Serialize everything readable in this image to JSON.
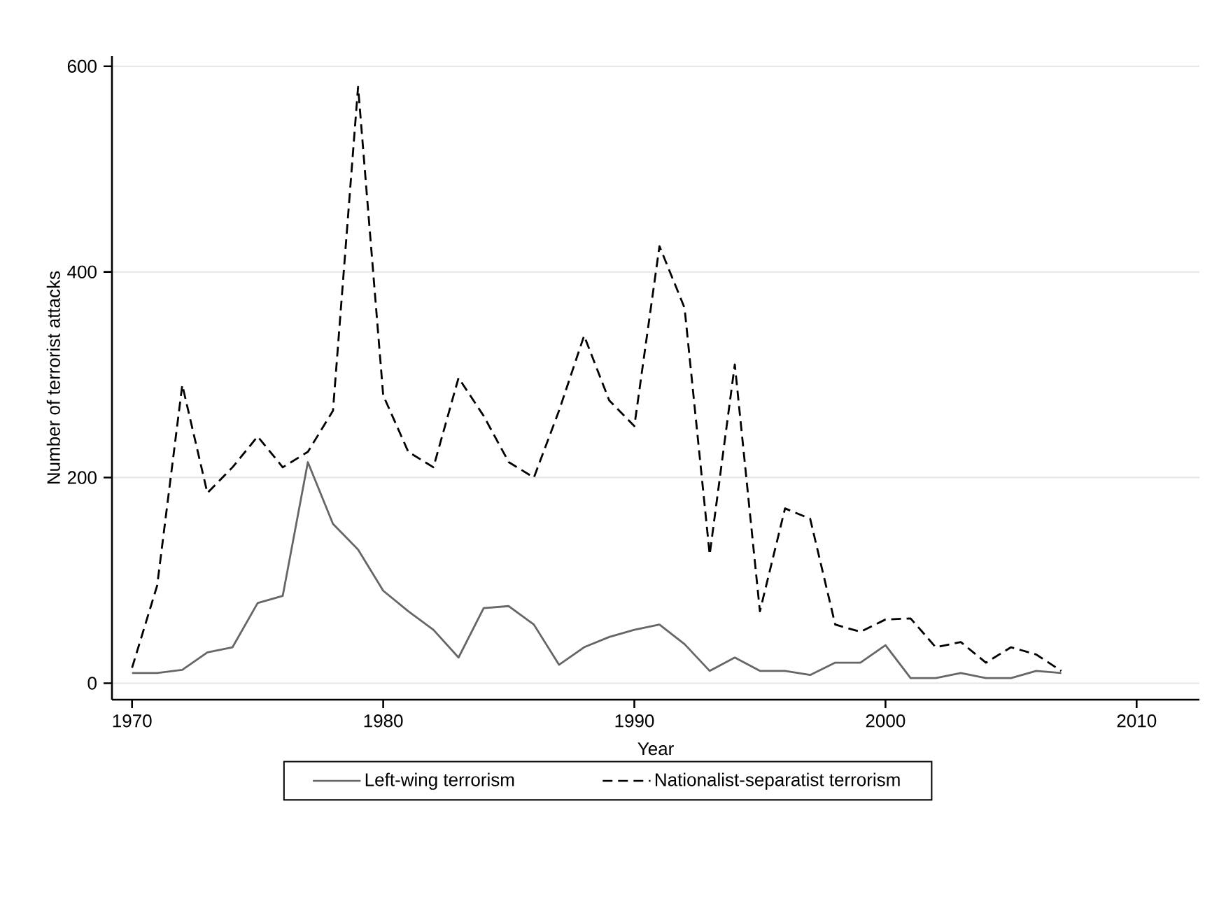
{
  "chart_data": {
    "type": "line",
    "xlabel": "Year",
    "ylabel": "Number of terrorist attacks",
    "x": [
      1970,
      1971,
      1972,
      1973,
      1974,
      1975,
      1976,
      1977,
      1978,
      1979,
      1980,
      1981,
      1982,
      1983,
      1984,
      1985,
      1986,
      1987,
      1988,
      1989,
      1990,
      1991,
      1992,
      1993,
      1994,
      1995,
      1996,
      1997,
      1998,
      1999,
      2000,
      2001,
      2002,
      2003,
      2004,
      2005,
      2006,
      2007
    ],
    "series": [
      {
        "name": "Left-wing terrorism",
        "color": "#666666",
        "line_style": "solid",
        "values": [
          10,
          10,
          13,
          30,
          35,
          78,
          85,
          215,
          155,
          130,
          90,
          70,
          52,
          25,
          73,
          75,
          57,
          18,
          35,
          45,
          52,
          57,
          38,
          12,
          25,
          12,
          12,
          8,
          20,
          20,
          37,
          5,
          5,
          10,
          5,
          5,
          12,
          10
        ]
      },
      {
        "name": "Nationalist-separatist terrorism",
        "color": "#000000",
        "line_style": "dashed",
        "values": [
          15,
          95,
          290,
          185,
          210,
          240,
          210,
          225,
          265,
          580,
          280,
          225,
          210,
          297,
          260,
          215,
          200,
          265,
          338,
          275,
          250,
          425,
          365,
          125,
          310,
          70,
          170,
          160,
          57,
          50,
          62,
          63,
          35,
          40,
          20,
          35,
          28,
          12
        ]
      }
    ],
    "xlim": [
      1969.2,
      2012.5
    ],
    "ylim": [
      -16,
      610
    ],
    "xticks": [
      1970,
      1980,
      1990,
      2000,
      2010
    ],
    "yticks": [
      0,
      200,
      400,
      600
    ],
    "grid": "y",
    "legend": "bottom",
    "marker": "none"
  }
}
